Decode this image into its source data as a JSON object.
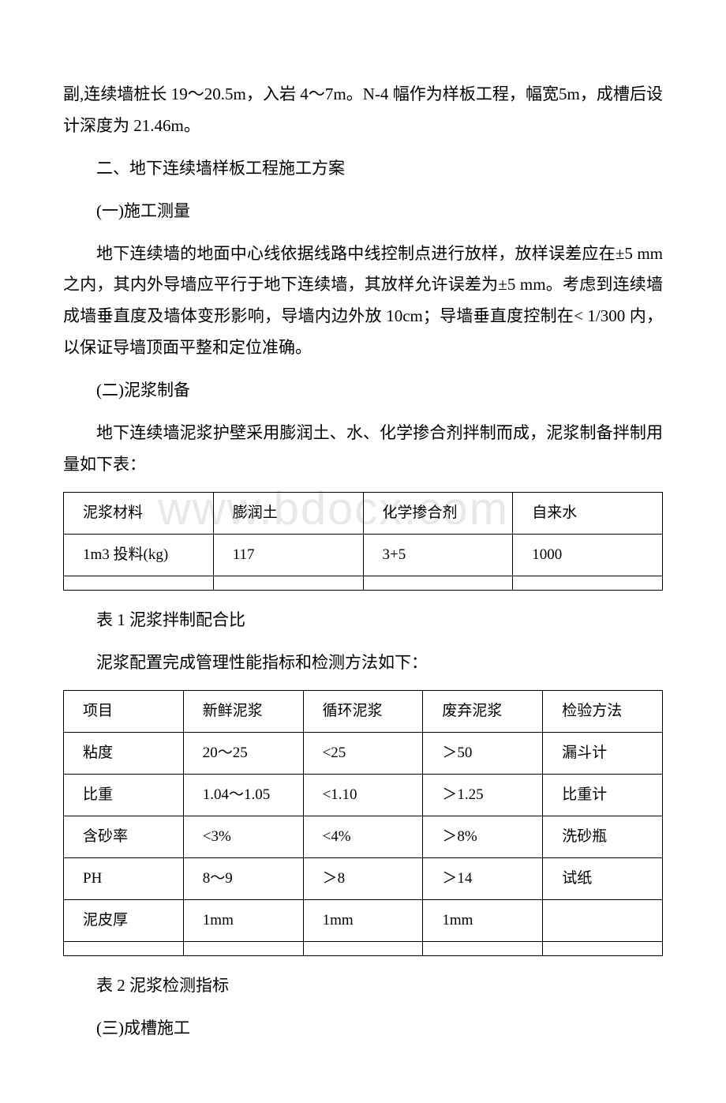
{
  "watermark": "www.bdocx.com",
  "paragraphs": {
    "p1": "副,连续墙桩长 19～20.5m，入岩 4～7m。N-4 幅作为样板工程，幅宽5m，成槽后设计深度为 21.46m。",
    "h2": "二、地下连续墙样板工程施工方案",
    "s1": "(一)施工测量",
    "p2": "地下连续墙的地面中心线依据线路中线控制点进行放样，放样误差应在±5 mm 之内，其内外导墙应平行于地下连续墙，其放样允许误差为±5 mm。考虑到连续墙成墙垂直度及墙体变形影响，导墙内边外放 10cm；导墙垂直度控制在< 1/300 内，以保证导墙顶面平整和定位准确。",
    "s2": "(二)泥浆制备",
    "p3": "地下连续墙泥浆护壁采用膨润土、水、化学掺合剂拌制而成，泥浆制备拌制用量如下表：",
    "caption1": "表 1 泥浆拌制配合比",
    "p4": "泥浆配置完成管理性能指标和检测方法如下：",
    "caption2": "表 2 泥浆检测指标",
    "s3": "(三)成槽施工"
  },
  "table1": {
    "headers": [
      "泥浆材料",
      "膨润土",
      "化学掺合剂",
      "自来水"
    ],
    "row_label": "1m3 投料(kg)",
    "values": [
      "117",
      "3+5",
      "1000"
    ]
  },
  "table2": {
    "columns": [
      "项目",
      "新鲜泥浆",
      "循环泥浆",
      "废弃泥浆",
      "检验方法"
    ],
    "rows": [
      [
        "粘度",
        "20～25",
        "<25",
        "＞50",
        "漏斗计"
      ],
      [
        "比重",
        "1.04～1.05",
        "<1.10",
        "＞1.25",
        "比重计"
      ],
      [
        "含砂率",
        "<3%",
        "<4%",
        "＞8%",
        "洗砂瓶"
      ],
      [
        "PH",
        "8～9",
        "＞8",
        "＞14",
        "试纸"
      ],
      [
        "泥皮厚",
        "1mm",
        "1mm",
        "1mm",
        ""
      ]
    ]
  }
}
